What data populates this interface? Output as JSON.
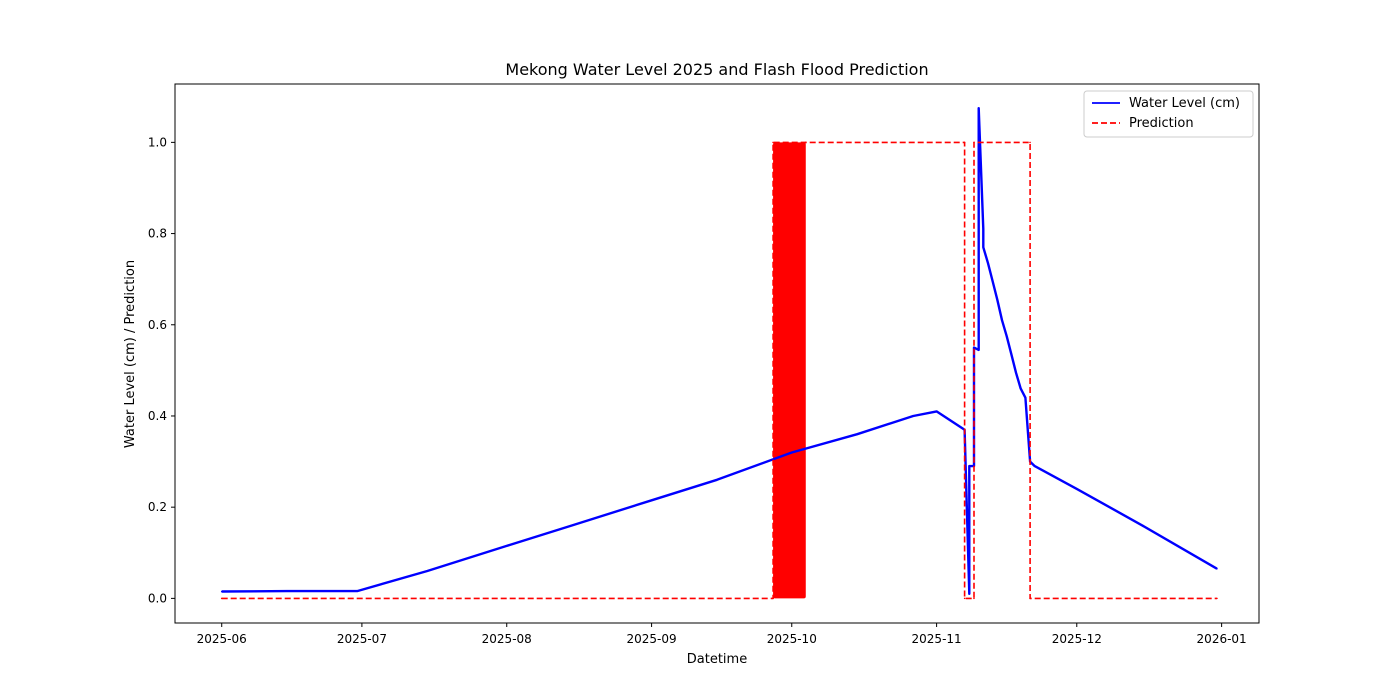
{
  "chart_data": {
    "type": "line",
    "title": "Mekong Water Level 2025 and Flash Flood Prediction",
    "xlabel": "Datetime",
    "ylabel": "Water Level (cm) / Prediction",
    "xlim": [
      "2025-05-22",
      "2026-01-09"
    ],
    "ylim": [
      -0.054,
      1.128
    ],
    "x_ticks": [
      "2025-06",
      "2025-07",
      "2025-08",
      "2025-09",
      "2025-10",
      "2025-11",
      "2025-12",
      "2026-01"
    ],
    "x_tick_dates": [
      "2025-06-01",
      "2025-07-01",
      "2025-08-01",
      "2025-09-01",
      "2025-10-01",
      "2025-11-01",
      "2025-12-01",
      "2026-01-01"
    ],
    "y_ticks": [
      "0.0",
      "0.2",
      "0.4",
      "0.6",
      "0.8",
      "1.0"
    ],
    "y_tick_values": [
      0.0,
      0.2,
      0.4,
      0.6,
      0.8,
      1.0
    ],
    "grid": false,
    "legend_position": "top-right",
    "series": [
      {
        "name": "Water Level (cm)",
        "style": "solid",
        "color": "#0000ff",
        "x": [
          "2025-06-01",
          "2025-06-15",
          "2025-06-30",
          "2025-07-15",
          "2025-08-01",
          "2025-08-15",
          "2025-09-01",
          "2025-09-15",
          "2025-10-01",
          "2025-10-15",
          "2025-10-27",
          "2025-11-01",
          "2025-11-07",
          "2025-11-08",
          "2025-11-08",
          "2025-11-09",
          "2025-11-09",
          "2025-11-10",
          "2025-11-10",
          "2025-11-11",
          "2025-11-11",
          "2025-11-12",
          "2025-11-13",
          "2025-11-14",
          "2025-11-15",
          "2025-11-16",
          "2025-11-17",
          "2025-11-18",
          "2025-11-19",
          "2025-11-20",
          "2025-11-21",
          "2025-11-22",
          "2025-12-01",
          "2025-12-15",
          "2025-12-31"
        ],
        "y": [
          0.015,
          0.016,
          0.016,
          0.06,
          0.115,
          0.16,
          0.215,
          0.26,
          0.32,
          0.36,
          0.4,
          0.41,
          0.37,
          0.01,
          0.29,
          0.29,
          0.55,
          0.545,
          1.075,
          0.81,
          0.77,
          0.735,
          0.695,
          0.655,
          0.61,
          0.575,
          0.535,
          0.495,
          0.46,
          0.44,
          0.3,
          0.29,
          0.24,
          0.16,
          0.065
        ]
      },
      {
        "name": "Prediction",
        "style": "dashed",
        "color": "#ff0000",
        "x": [
          "2025-06-01",
          "2025-09-27",
          "2025-09-27",
          "2025-10-04",
          "2025-10-04",
          "2025-11-07",
          "2025-11-07",
          "2025-11-09",
          "2025-11-09",
          "2025-11-21",
          "2025-11-21",
          "2025-12-31"
        ],
        "y": [
          0,
          0,
          1,
          1,
          1,
          1,
          0,
          0,
          1,
          1,
          0,
          0
        ]
      }
    ],
    "oscillation_band": {
      "from": "2025-09-27",
      "to": "2025-10-04",
      "y": [
        0,
        1
      ],
      "color": "#ff0000"
    }
  }
}
